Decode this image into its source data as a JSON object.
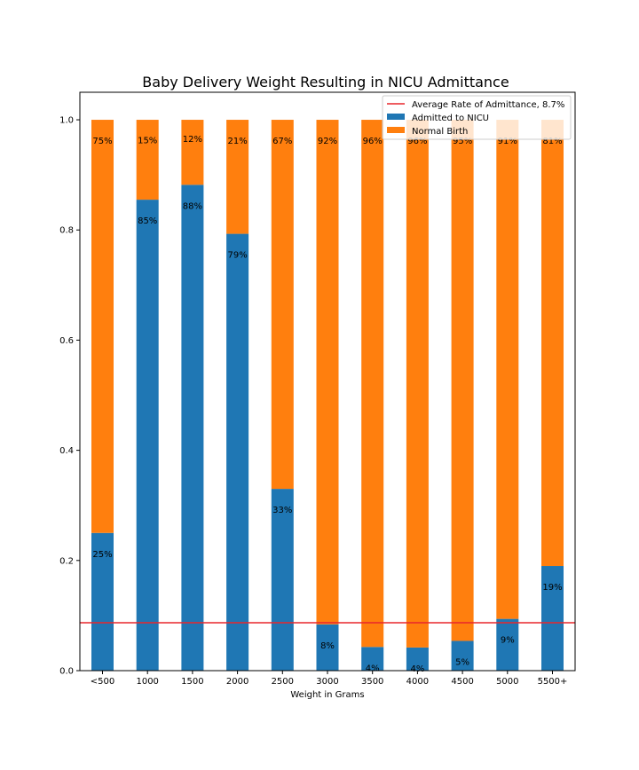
{
  "chart_data": {
    "type": "bar",
    "stacked": true,
    "title": "Baby Delivery Weight Resulting in NICU Admittance",
    "xlabel": "Weight in Grams",
    "ylabel": "",
    "ylim": [
      0,
      1.05
    ],
    "yticks": [
      "0.0",
      "0.2",
      "0.4",
      "0.6",
      "0.8",
      "1.0"
    ],
    "categories": [
      "<500",
      "1000",
      "1500",
      "2000",
      "2500",
      "3000",
      "3500",
      "4000",
      "4500",
      "5000",
      "5500+"
    ],
    "series": [
      {
        "name": "Admitted to NICU",
        "color": "#1f77b4",
        "values": [
          0.25,
          0.855,
          0.882,
          0.793,
          0.33,
          0.084,
          0.043,
          0.042,
          0.054,
          0.094,
          0.19
        ],
        "labels": [
          "25%",
          "85%",
          "88%",
          "79%",
          "33%",
          "8%",
          "4%",
          "4%",
          "5%",
          "9%",
          "19%"
        ]
      },
      {
        "name": "Normal Birth",
        "color": "#ff7f0e",
        "values": [
          0.75,
          0.145,
          0.118,
          0.207,
          0.67,
          0.916,
          0.957,
          0.958,
          0.946,
          0.906,
          0.81
        ],
        "labels": [
          "75%",
          "15%",
          "12%",
          "21%",
          "67%",
          "92%",
          "96%",
          "96%",
          "95%",
          "91%",
          "81%"
        ]
      }
    ],
    "reference_line": {
      "name": "Average Rate of Admittance, 8.7%",
      "value": 0.087,
      "color": "#e8262b"
    },
    "legend_position": "top-right",
    "grid": false
  }
}
